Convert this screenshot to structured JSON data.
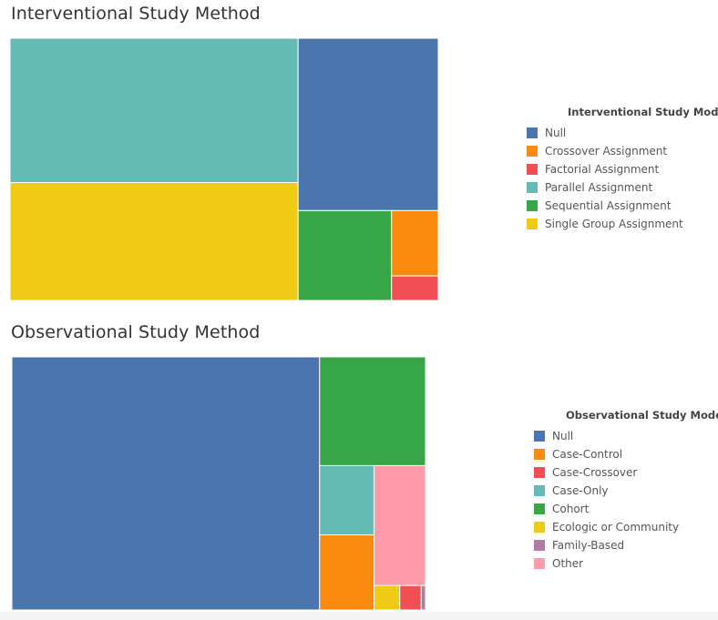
{
  "chart_data": [
    {
      "type": "treemap",
      "title": "Interventional Study Method",
      "legend_title": "Interventional Study Model",
      "legend_placement": "right",
      "categories": [
        "Null",
        "Crossover Assignment",
        "Factorial Assignment",
        "Parallel Assignment",
        "Sequential Assignment",
        "Single Group Assignment"
      ],
      "colors": [
        "#4a76ad",
        "#fa8a0e",
        "#f24f55",
        "#64bab4",
        "#37a646",
        "#f0cb15"
      ],
      "values": [
        19.0,
        2.4,
        0.9,
        32.7,
        6.6,
        26.7
      ]
    },
    {
      "type": "treemap",
      "title": "Observational Study Method",
      "legend_title": "Observational Study Model",
      "legend_placement": "right",
      "categories": [
        "Null",
        "Case-Control",
        "Case-Crossover",
        "Case-Only",
        "Cohort",
        "Ecologic or Community",
        "Family-Based",
        "Other"
      ],
      "colors": [
        "#4a76ad",
        "#fa8a0e",
        "#f24f55",
        "#64bab4",
        "#37a646",
        "#f0cb15",
        "#b07aa3",
        "#fd9ca8"
      ],
      "values": [
        74.4,
        3.9,
        0.5,
        3.6,
        11.0,
        0.6,
        0.1,
        5.9
      ]
    }
  ]
}
